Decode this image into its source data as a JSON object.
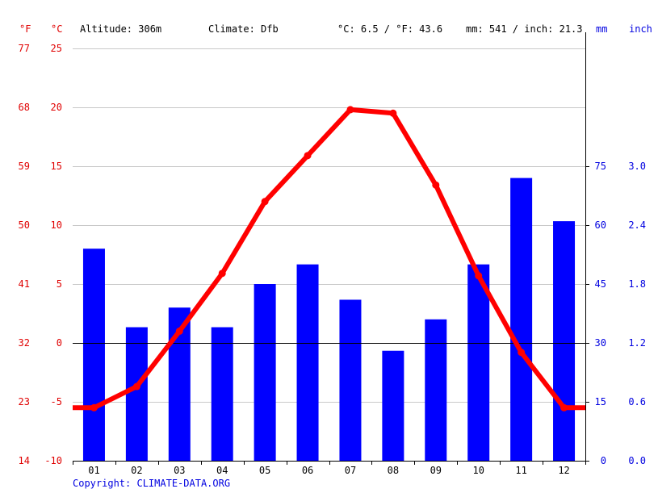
{
  "header": {
    "unit_f": "°F",
    "unit_c": "°C",
    "altitude": "Altitude: 306m",
    "climate": "Climate: Dfb",
    "avg_temp": "°C: 6.5 / °F: 43.6",
    "precip": "mm: 541 / inch: 21.3",
    "unit_mm": "mm",
    "unit_inch": "inch"
  },
  "copyright": "Copyright: CLIMATE-DATA.ORG",
  "colors": {
    "temp_line": "#ff0000",
    "precip_bar": "#0000ff",
    "left_axis": "#e00000",
    "right_axis": "#0000e0",
    "grid": "#c8c8c8"
  },
  "chart_data": {
    "type": "bar",
    "categories": [
      "01",
      "02",
      "03",
      "04",
      "05",
      "06",
      "07",
      "08",
      "09",
      "10",
      "11",
      "12"
    ],
    "series": [
      {
        "type": "bar",
        "axis": "precip",
        "unit": "mm",
        "values": [
          54,
          34,
          39,
          34,
          45,
          50,
          41,
          28,
          36,
          50,
          72,
          61
        ]
      },
      {
        "type": "line",
        "axis": "temp",
        "unit": "°C",
        "values": [
          -5.5,
          -3.7,
          1.0,
          5.9,
          12.0,
          15.9,
          19.8,
          19.5,
          13.4,
          5.7,
          -0.8,
          -5.5
        ]
      }
    ],
    "temp_axis": {
      "c_ticks": [
        "25",
        "20",
        "15",
        "10",
        "5",
        "0",
        "-5",
        "-10"
      ],
      "f_ticks": [
        "77",
        "68",
        "59",
        "50",
        "41",
        "32",
        "23",
        "14"
      ],
      "c_values": [
        25,
        20,
        15,
        10,
        5,
        0,
        -5,
        -10
      ],
      "ylim": [
        -10,
        25
      ]
    },
    "precip_axis": {
      "mm_ticks": [
        "75",
        "60",
        "45",
        "30",
        "15",
        "0"
      ],
      "inch_ticks": [
        "3.0",
        "2.4",
        "1.8",
        "1.2",
        "0.6",
        "0.0"
      ],
      "mm_values": [
        75,
        60,
        45,
        30,
        15,
        0
      ],
      "ylim": [
        0,
        75
      ]
    },
    "grid": true
  }
}
